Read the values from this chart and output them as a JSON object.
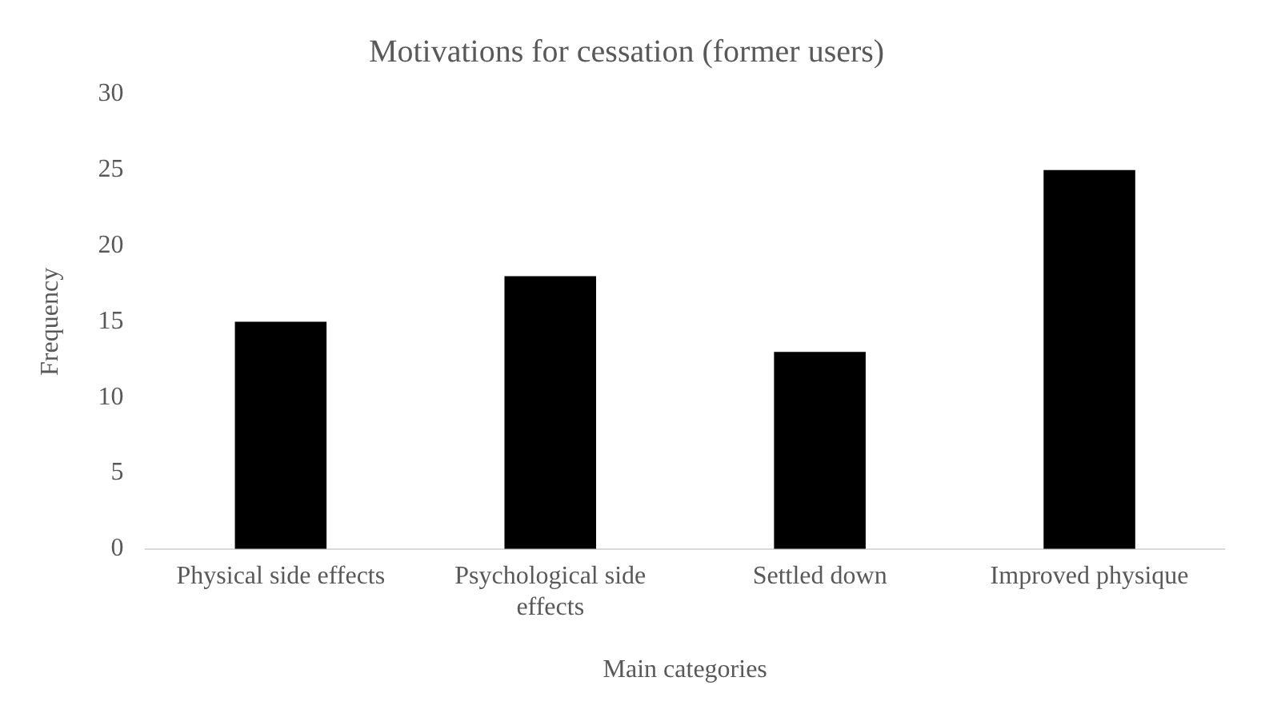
{
  "chart_data": {
    "type": "bar",
    "title": "Motivations for cessation (former users)",
    "xlabel": "Main categories",
    "ylabel": "Frequency",
    "categories": [
      "Physical side effects",
      "Psychological side effects",
      "Settled down",
      "Improved physique"
    ],
    "values": [
      15,
      18,
      13,
      25
    ],
    "color": "#000000",
    "ylim": [
      0,
      30
    ],
    "yticks": [
      0,
      5,
      10,
      15,
      20,
      25,
      30
    ],
    "grid": false,
    "legend": false
  }
}
